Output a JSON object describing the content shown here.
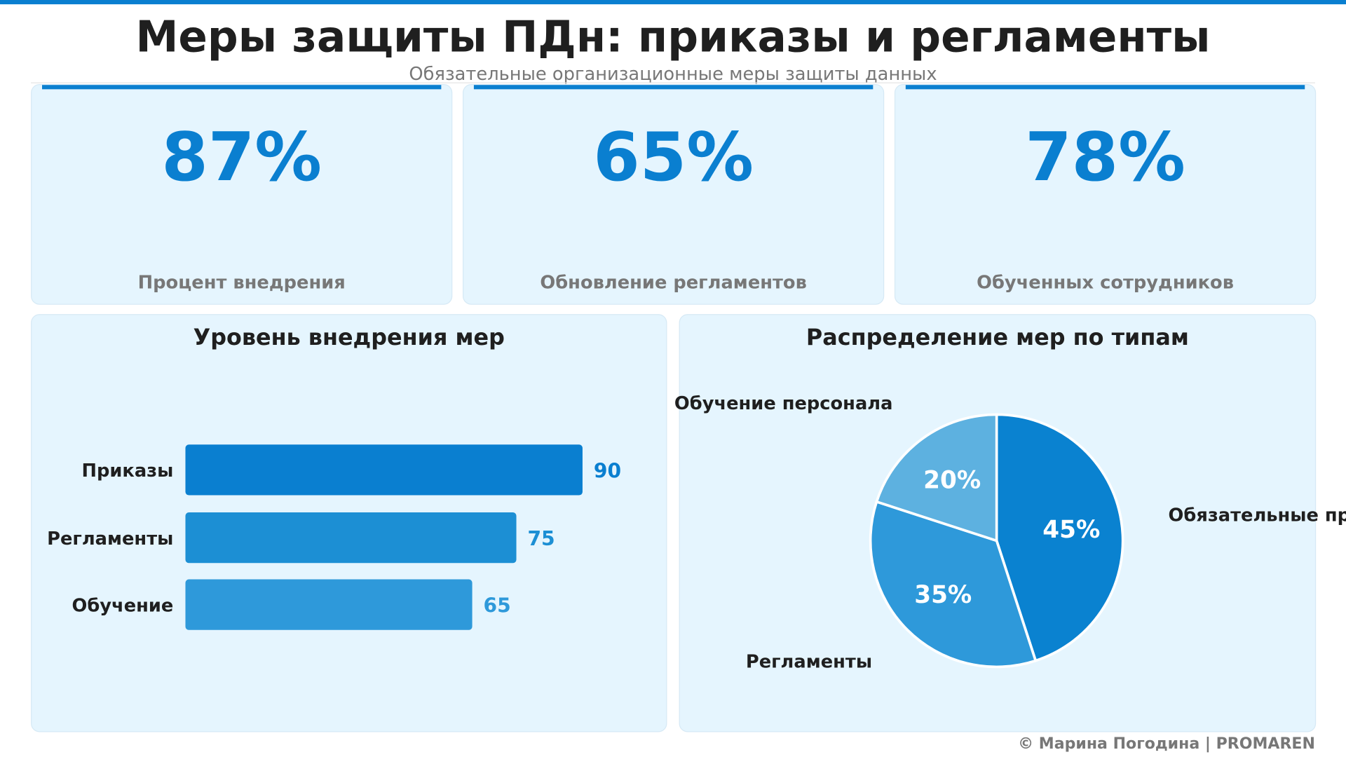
{
  "header": {
    "title": "Меры защиты ПДн: приказы и регламенты",
    "subtitle": "Обязательные организационные меры защиты данных"
  },
  "kpis": [
    {
      "value": "87%",
      "label": "Процент внедрения"
    },
    {
      "value": "65%",
      "label": "Обновление регламентов"
    },
    {
      "value": "78%",
      "label": "Обученных сотрудников"
    }
  ],
  "colors": {
    "accent": "#0a7fd0",
    "card_bg": "#e5f5fe"
  },
  "chart_data": [
    {
      "type": "bar",
      "orientation": "horizontal",
      "title": "Уровень внедрения мер",
      "categories": [
        "Приказы",
        "Регламенты",
        "Обучение"
      ],
      "values": [
        90,
        75,
        65
      ],
      "xlim": [
        0,
        100
      ],
      "colors": [
        "#0a7fd0",
        "#1c8fd4",
        "#2e99da"
      ],
      "data_labels": true,
      "grid": false
    },
    {
      "type": "pie",
      "title": "Распределение мер по типам",
      "categories": [
        "Обязательные приказы",
        "Регламенты",
        "Обучение персонала"
      ],
      "values": [
        45,
        35,
        20
      ],
      "labels": [
        "45%",
        "35%",
        "20%"
      ],
      "colors": [
        "#0a82d0",
        "#2e99da",
        "#5db1e0"
      ]
    }
  ],
  "footer": "© Марина Погодина | PROMAREN"
}
